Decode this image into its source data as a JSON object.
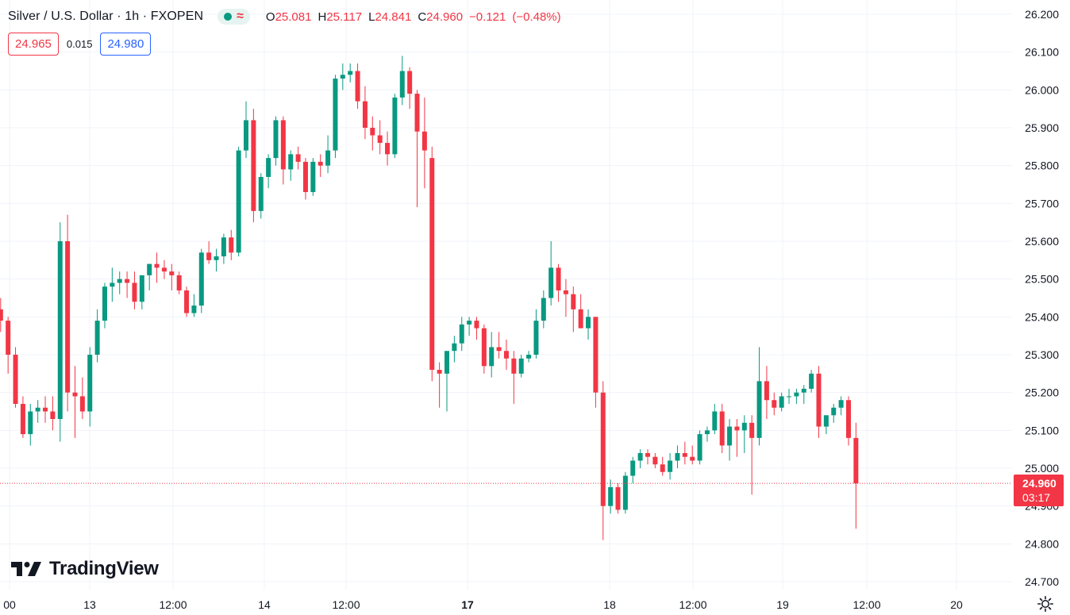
{
  "header": {
    "symbol_title": "Silver / U.S. Dollar · 1h · FXOPEN",
    "ohlc": {
      "open_label": "O",
      "open": "25.081",
      "high_label": "H",
      "high": "25.117",
      "low_label": "L",
      "low": "24.841",
      "close_label": "C",
      "close": "24.960",
      "change": "−0.121",
      "change_pct": "(−0.48%)"
    },
    "wave_glyph": "≈"
  },
  "quote": {
    "sell": "24.965",
    "spread": "0.015",
    "buy": "24.980"
  },
  "last_price": {
    "price": "24.960",
    "countdown": "03:17"
  },
  "brand": {
    "name": "TradingView"
  },
  "colors": {
    "up": "#089981",
    "down": "#f23645",
    "grid": "#f0f3fa",
    "text": "#131722",
    "accent": "#2962ff"
  },
  "icons": {
    "settings": "gear-icon",
    "logo": "tradingview-logo-icon"
  },
  "chart_data": {
    "type": "candlestick",
    "timeframe": "1h",
    "ylim": [
      24.66,
      26.24
    ],
    "y_ticks": [
      "24.700",
      "24.800",
      "24.900",
      "25.000",
      "25.100",
      "25.200",
      "25.300",
      "25.400",
      "25.500",
      "25.600",
      "25.700",
      "25.800",
      "25.900",
      "26.000",
      "26.100",
      "26.200"
    ],
    "x_ticks": [
      "00",
      "13",
      "12:00",
      "14",
      "12:00",
      "17",
      "18",
      "12:00",
      "19",
      "12:00",
      "20"
    ],
    "x_tick_bold": [
      "17"
    ],
    "last_close": 24.96,
    "candles": [
      [
        25.42,
        25.45,
        25.36,
        25.39
      ],
      [
        25.39,
        25.4,
        25.25,
        25.3
      ],
      [
        25.3,
        25.32,
        25.16,
        25.17
      ],
      [
        25.17,
        25.19,
        25.08,
        25.09
      ],
      [
        25.09,
        25.17,
        25.06,
        25.15
      ],
      [
        25.15,
        25.18,
        25.12,
        25.16
      ],
      [
        25.16,
        25.19,
        25.12,
        25.15
      ],
      [
        25.15,
        25.19,
        25.1,
        25.13
      ],
      [
        25.13,
        25.65,
        25.07,
        25.6
      ],
      [
        25.6,
        25.67,
        25.15,
        25.2
      ],
      [
        25.2,
        25.27,
        25.08,
        25.19
      ],
      [
        25.19,
        25.24,
        25.13,
        25.15
      ],
      [
        25.15,
        25.32,
        25.11,
        25.3
      ],
      [
        25.3,
        25.42,
        25.28,
        25.39
      ],
      [
        25.39,
        25.49,
        25.37,
        25.48
      ],
      [
        25.48,
        25.53,
        25.44,
        25.49
      ],
      [
        25.49,
        25.52,
        25.46,
        25.5
      ],
      [
        25.5,
        25.52,
        25.45,
        25.49
      ],
      [
        25.49,
        25.52,
        25.42,
        25.44
      ],
      [
        25.44,
        25.51,
        25.42,
        25.51
      ],
      [
        25.51,
        25.54,
        25.47,
        25.54
      ],
      [
        25.54,
        25.57,
        25.49,
        25.53
      ],
      [
        25.53,
        25.55,
        25.5,
        25.52
      ],
      [
        25.52,
        25.54,
        25.47,
        25.51
      ],
      [
        25.51,
        25.52,
        25.46,
        25.47
      ],
      [
        25.47,
        25.48,
        25.4,
        25.41
      ],
      [
        25.41,
        25.46,
        25.4,
        25.43
      ],
      [
        25.43,
        25.58,
        25.41,
        25.57
      ],
      [
        25.57,
        25.6,
        25.54,
        25.55
      ],
      [
        25.55,
        25.58,
        25.52,
        25.56
      ],
      [
        25.56,
        25.62,
        25.54,
        25.61
      ],
      [
        25.61,
        25.63,
        25.55,
        25.57
      ],
      [
        25.57,
        25.85,
        25.56,
        25.84
      ],
      [
        25.84,
        25.97,
        25.82,
        25.92
      ],
      [
        25.92,
        25.95,
        25.65,
        25.68
      ],
      [
        25.68,
        25.78,
        25.66,
        25.77
      ],
      [
        25.77,
        25.83,
        25.74,
        25.82
      ],
      [
        25.82,
        25.93,
        25.8,
        25.92
      ],
      [
        25.92,
        25.93,
        25.75,
        25.79
      ],
      [
        25.79,
        25.84,
        25.76,
        25.83
      ],
      [
        25.83,
        25.85,
        25.79,
        25.81
      ],
      [
        25.81,
        25.82,
        25.71,
        25.73
      ],
      [
        25.73,
        25.82,
        25.72,
        25.81
      ],
      [
        25.81,
        25.83,
        25.77,
        25.8
      ],
      [
        25.8,
        25.88,
        25.78,
        25.84
      ],
      [
        25.84,
        26.04,
        25.82,
        26.03
      ],
      [
        26.03,
        26.07,
        26.0,
        26.04
      ],
      [
        26.04,
        26.07,
        26.02,
        26.05
      ],
      [
        26.05,
        26.07,
        25.95,
        25.97
      ],
      [
        25.97,
        26.01,
        25.87,
        25.9
      ],
      [
        25.9,
        25.93,
        25.84,
        25.88
      ],
      [
        25.88,
        25.92,
        25.83,
        25.86
      ],
      [
        25.86,
        25.89,
        25.8,
        25.83
      ],
      [
        25.83,
        25.99,
        25.82,
        25.98
      ],
      [
        25.98,
        26.09,
        25.96,
        26.05
      ],
      [
        26.05,
        26.06,
        25.95,
        25.99
      ],
      [
        25.99,
        26.0,
        25.69,
        25.89
      ],
      [
        25.89,
        25.98,
        25.74,
        25.84
      ],
      [
        25.82,
        25.85,
        25.23,
        25.26
      ],
      [
        25.26,
        25.28,
        25.16,
        25.25
      ],
      [
        25.25,
        25.3,
        25.15,
        25.31
      ],
      [
        25.31,
        25.35,
        25.28,
        25.33
      ],
      [
        25.33,
        25.4,
        25.31,
        25.38
      ],
      [
        25.38,
        25.4,
        25.35,
        25.39
      ],
      [
        25.39,
        25.4,
        25.34,
        25.37
      ],
      [
        25.37,
        25.38,
        25.25,
        25.27
      ],
      [
        25.27,
        25.36,
        25.24,
        25.32
      ],
      [
        25.32,
        25.36,
        25.29,
        25.31
      ],
      [
        25.31,
        25.34,
        25.26,
        25.29
      ],
      [
        25.29,
        25.31,
        25.17,
        25.25
      ],
      [
        25.25,
        25.3,
        25.24,
        25.29
      ],
      [
        25.29,
        25.31,
        25.28,
        25.3
      ],
      [
        25.3,
        25.42,
        25.29,
        25.39
      ],
      [
        25.39,
        25.47,
        25.37,
        25.45
      ],
      [
        25.45,
        25.6,
        25.43,
        25.53
      ],
      [
        25.53,
        25.54,
        25.44,
        25.47
      ],
      [
        25.47,
        25.5,
        25.4,
        25.46
      ],
      [
        25.46,
        25.48,
        25.36,
        25.42
      ],
      [
        25.42,
        25.46,
        25.38,
        25.37
      ],
      [
        25.37,
        25.42,
        25.34,
        25.4
      ],
      [
        25.4,
        25.4,
        25.16,
        25.2
      ],
      [
        25.2,
        25.23,
        24.81,
        24.9
      ],
      [
        24.9,
        24.97,
        24.88,
        24.95
      ],
      [
        24.95,
        24.96,
        24.88,
        24.89
      ],
      [
        24.89,
        24.99,
        24.88,
        24.98
      ],
      [
        24.98,
        25.03,
        24.96,
        25.02
      ],
      [
        25.02,
        25.05,
        25.0,
        25.04
      ],
      [
        25.04,
        25.05,
        25.01,
        25.03
      ],
      [
        25.03,
        25.04,
        25.0,
        25.01
      ],
      [
        25.01,
        25.03,
        24.98,
        24.99
      ],
      [
        24.99,
        25.04,
        24.97,
        25.02
      ],
      [
        25.02,
        25.06,
        25.0,
        25.04
      ],
      [
        25.04,
        25.07,
        25.01,
        25.03
      ],
      [
        25.03,
        25.06,
        25.01,
        25.02
      ],
      [
        25.02,
        25.1,
        25.01,
        25.09
      ],
      [
        25.09,
        25.11,
        25.07,
        25.1
      ],
      [
        25.1,
        25.17,
        25.09,
        25.15
      ],
      [
        25.15,
        25.17,
        25.04,
        25.06
      ],
      [
        25.06,
        25.13,
        25.02,
        25.11
      ],
      [
        25.11,
        25.13,
        25.03,
        25.1
      ],
      [
        25.1,
        25.14,
        25.04,
        25.12
      ],
      [
        25.12,
        25.14,
        24.93,
        25.08
      ],
      [
        25.08,
        25.32,
        25.06,
        25.23
      ],
      [
        25.23,
        25.27,
        25.13,
        25.18
      ],
      [
        25.18,
        25.2,
        25.14,
        25.16
      ],
      [
        25.16,
        25.2,
        25.15,
        25.19
      ],
      [
        25.19,
        25.21,
        25.17,
        25.19
      ],
      [
        25.19,
        25.21,
        25.17,
        25.2
      ],
      [
        25.2,
        25.22,
        25.17,
        25.21
      ],
      [
        25.21,
        25.26,
        25.2,
        25.25
      ],
      [
        25.25,
        25.27,
        25.08,
        25.11
      ],
      [
        25.11,
        25.13,
        25.09,
        25.14
      ],
      [
        25.14,
        25.17,
        25.12,
        25.16
      ],
      [
        25.16,
        25.19,
        25.14,
        25.18
      ],
      [
        25.18,
        25.19,
        25.06,
        25.08
      ],
      [
        25.08,
        25.12,
        24.84,
        24.96
      ]
    ]
  }
}
